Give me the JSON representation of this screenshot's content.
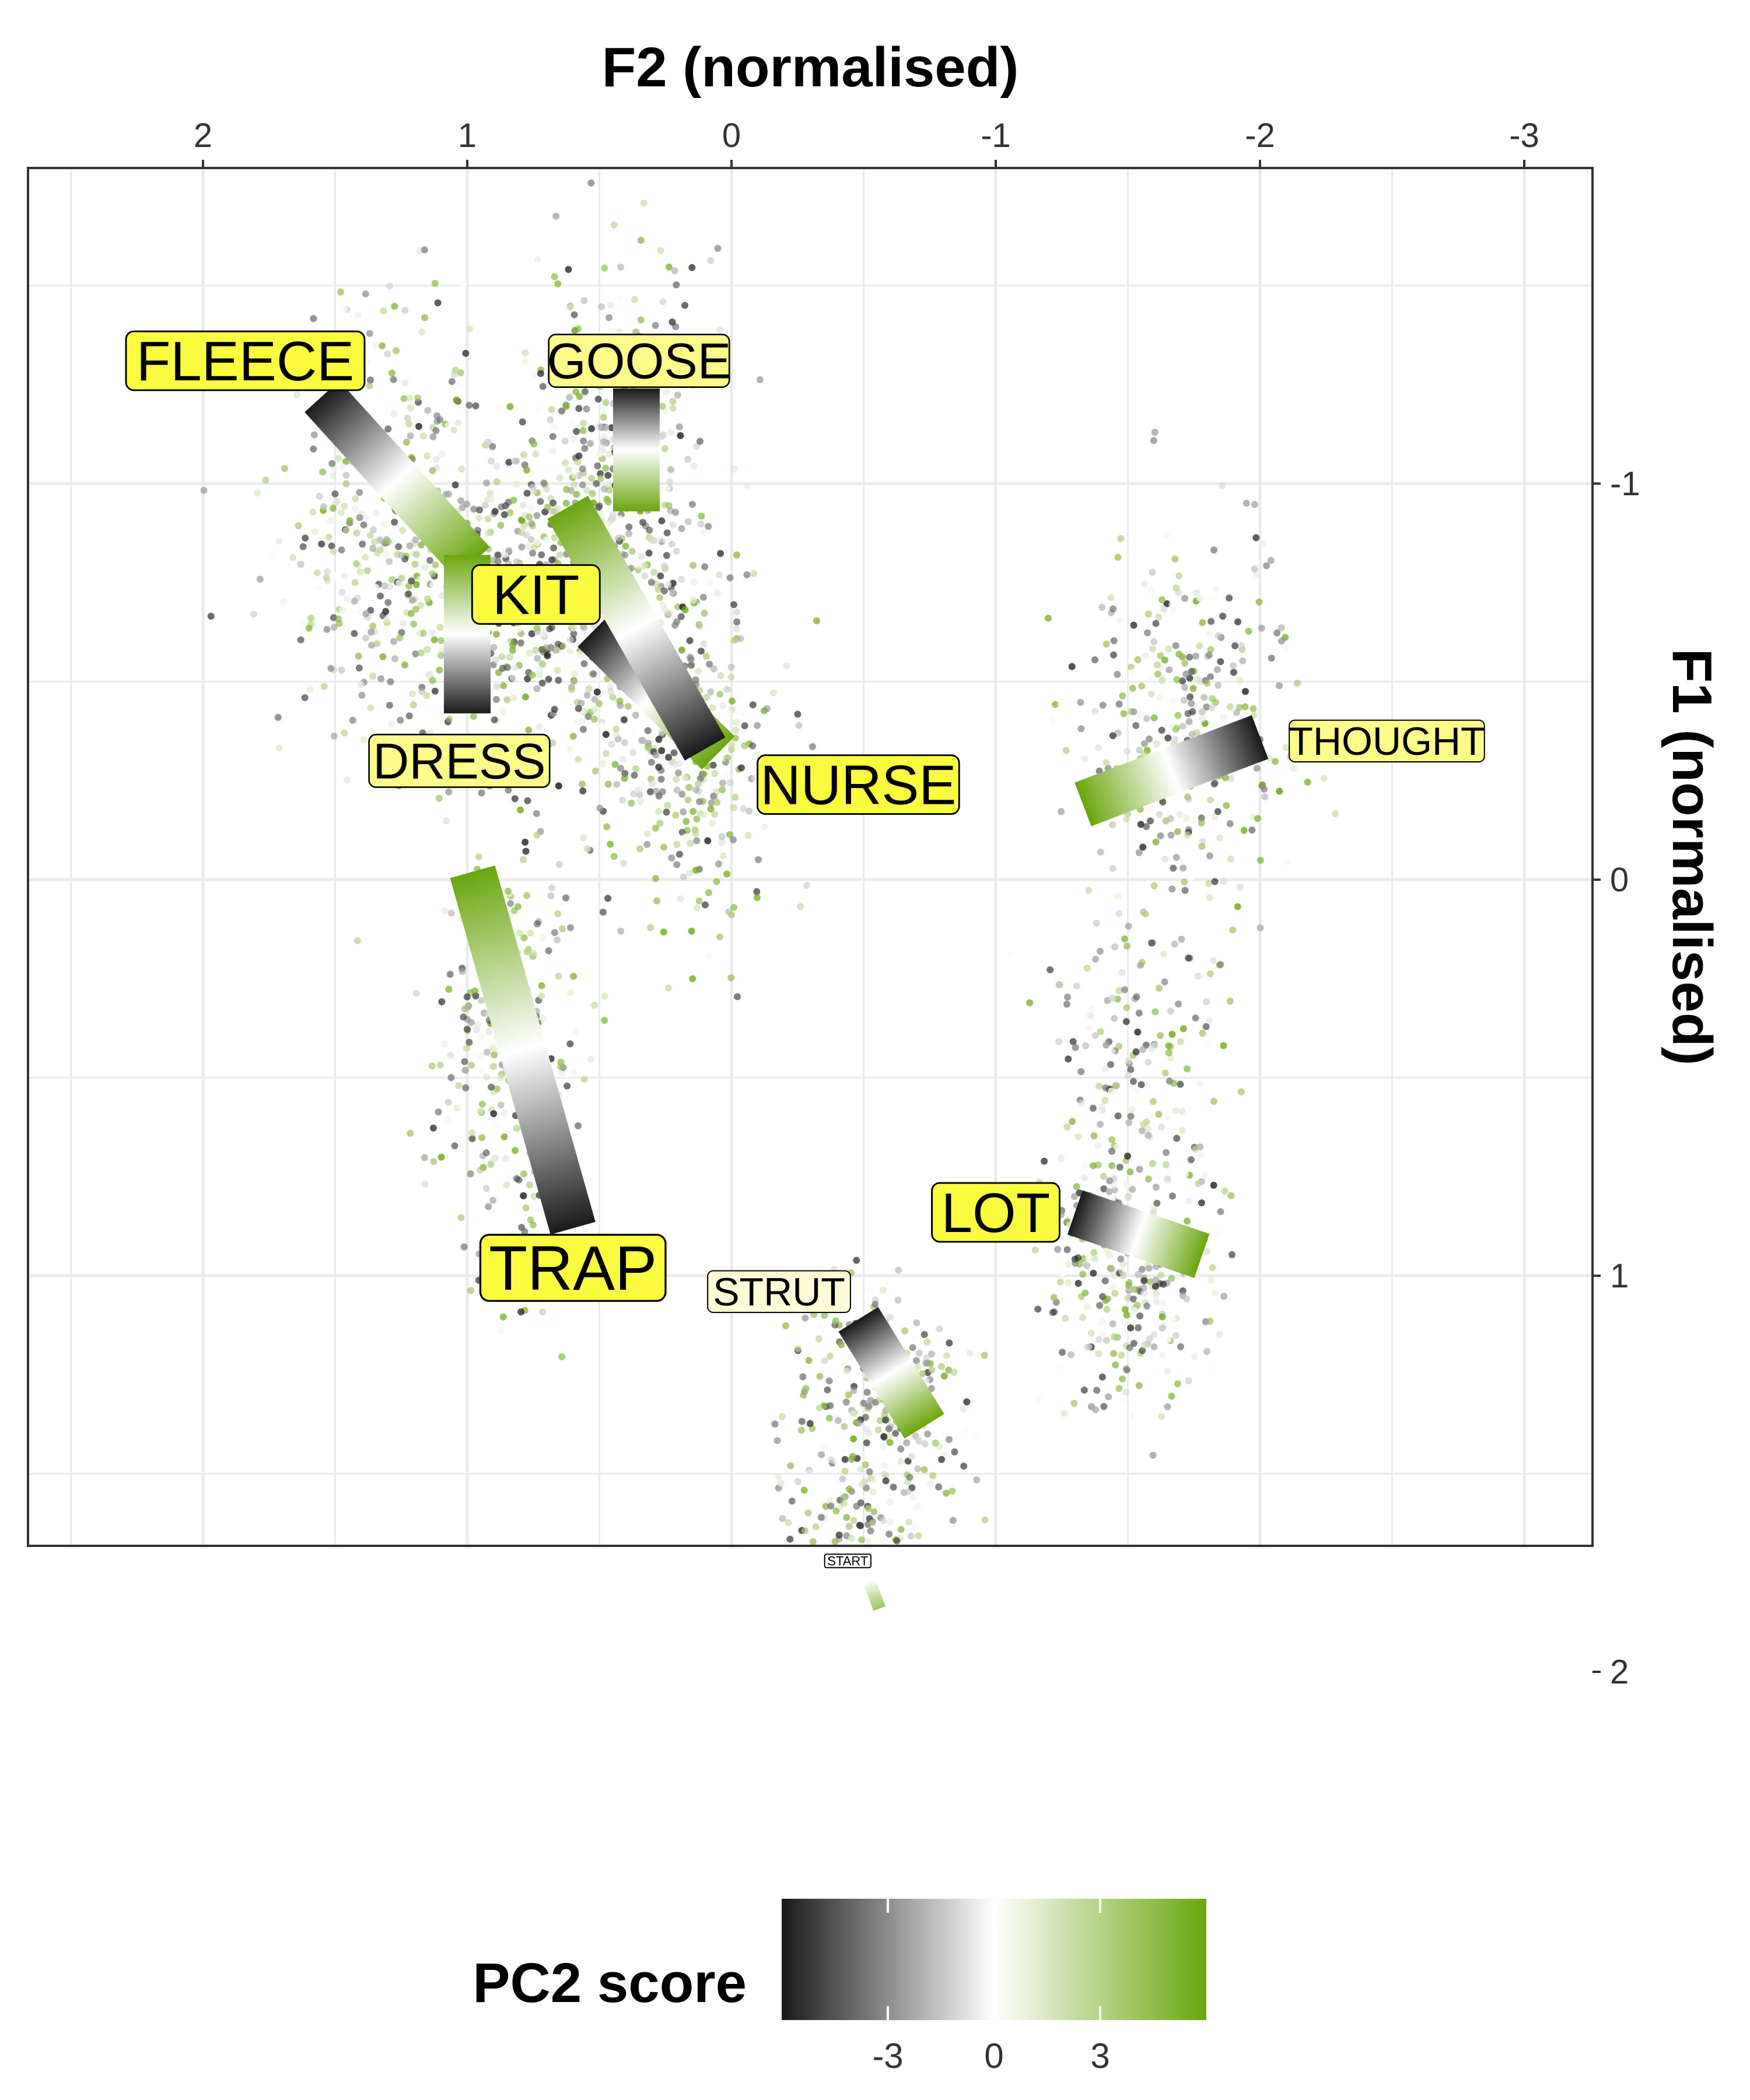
{
  "chart_data": {
    "type": "scatter",
    "xlabel": "F2 (normalised)",
    "ylabel": "F1 (normalised)",
    "x_axis": {
      "position": "top",
      "reversed": true,
      "range": [
        2.66,
        -3.27
      ],
      "ticks": [
        "2",
        "1",
        "0",
        "-1",
        "-2",
        "-3"
      ],
      "tick_values": [
        2,
        1,
        0,
        -1,
        -2,
        -3
      ]
    },
    "y_axis": {
      "position": "right",
      "reversed": true,
      "range": [
        -1.8,
        2.37
      ],
      "ticks": [
        "-1",
        "0",
        "1",
        "2"
      ],
      "tick_values": [
        -1,
        0,
        1,
        2
      ]
    },
    "grid": true,
    "legend": {
      "title": "PC2 score",
      "placement": "bottom",
      "ticks": [
        "-3",
        "0",
        "3"
      ],
      "tick_values": [
        -3,
        0,
        3
      ],
      "range": [
        -6,
        6
      ],
      "colors": {
        "low": "#1a1a1a",
        "mid": "#ffffff",
        "high": "#6aa60f"
      }
    },
    "vowels": [
      {
        "label": "FLEECE",
        "label_size": "large",
        "cx": 1.84,
        "cy": -1.31,
        "start": {
          "x": 1.55,
          "y": -1.22,
          "pc2": -6
        },
        "end": {
          "x": 0.98,
          "y": -0.8,
          "pc2": 6
        },
        "points": {
          "cx": 1.25,
          "cy": -0.88,
          "sx": 0.38,
          "sy": 0.45,
          "n": 420
        }
      },
      {
        "label": "GOOSE",
        "label_size": "medium",
        "cx": 0.35,
        "cy": -1.31,
        "start": {
          "x": 0.36,
          "y": -1.24,
          "pc2": -6
        },
        "end": {
          "x": 0.36,
          "y": -0.93,
          "pc2": 6
        },
        "points": {
          "cx": 0.42,
          "cy": -1.08,
          "sx": 0.28,
          "sy": 0.4,
          "n": 330
        }
      },
      {
        "label": "KIT",
        "label_size": "large",
        "cx": 0.74,
        "cy": -0.72,
        "start": {
          "x": 1.0,
          "y": -0.42,
          "pc2": -6
        },
        "end": {
          "x": 1.0,
          "y": -0.82,
          "pc2": 6
        },
        "points": {
          "cx": 0.85,
          "cy": -0.72,
          "sx": 0.32,
          "sy": 0.32,
          "n": 220
        }
      },
      {
        "label": "NURSE",
        "label_size": "large",
        "cx": -0.48,
        "cy": -0.24,
        "start": {
          "x": 0.52,
          "y": -0.63,
          "pc2": -6
        },
        "end": {
          "x": 0.05,
          "y": -0.32,
          "pc2": 6
        },
        "points": {
          "cx": 0.18,
          "cy": -0.35,
          "sx": 0.3,
          "sy": 0.38,
          "n": 360
        }
      },
      {
        "label": "DRESS",
        "label_size": "medium",
        "cx": 1.03,
        "cy": -0.3,
        "start": {
          "x": 0.62,
          "y": -0.94,
          "pc2": 6
        },
        "end": {
          "x": 0.1,
          "y": -0.33,
          "pc2": -6
        },
        "points": {
          "cx": 0.55,
          "cy": -0.7,
          "sx": 0.3,
          "sy": 0.35,
          "n": 260
        }
      },
      {
        "label": "THOUGHT",
        "label_size": "small",
        "cx": -2.48,
        "cy": -0.35,
        "start": {
          "x": -1.33,
          "y": -0.19,
          "pc2": 6
        },
        "end": {
          "x": -2.0,
          "y": -0.36,
          "pc2": -6
        },
        "points": {
          "cx": -1.72,
          "cy": -0.38,
          "sx": 0.32,
          "sy": 0.4,
          "n": 360
        }
      },
      {
        "label": "TRAP",
        "label_size": "xlarge",
        "cx": 0.6,
        "cy": 0.98,
        "start": {
          "x": 0.98,
          "y": -0.02,
          "pc2": 6
        },
        "end": {
          "x": 0.6,
          "y": 0.88,
          "pc2": -6
        },
        "points": {
          "cx": 0.85,
          "cy": 0.4,
          "sx": 0.22,
          "sy": 0.45,
          "n": 330
        }
      },
      {
        "label": "STRUT",
        "label_size": "small",
        "cx": -0.18,
        "cy": 1.04,
        "start": {
          "x": -0.48,
          "y": 1.11,
          "pc2": -6
        },
        "end": {
          "x": -0.73,
          "y": 1.38,
          "pc2": 6
        },
        "points": {
          "cx": -0.55,
          "cy": 1.3,
          "sx": 0.25,
          "sy": 0.25,
          "n": 260
        }
      },
      {
        "label": "LOT",
        "label_size": "large",
        "cx": -1.0,
        "cy": 0.84,
        "start": {
          "x": -1.3,
          "y": 0.84,
          "pc2": -6
        },
        "end": {
          "x": -1.78,
          "y": 0.95,
          "pc2": 6
        },
        "points": {
          "cx": -1.5,
          "cy": 0.95,
          "sx": 0.28,
          "sy": 0.3,
          "n": 330
        }
      },
      {
        "label": "START",
        "label_size": "tiny",
        "cx": -0.44,
        "cy": 1.72,
        "start": {
          "x": -0.52,
          "y": 1.77,
          "pc2": 0
        },
        "end": {
          "x": -0.56,
          "y": 1.84,
          "pc2": 4
        },
        "points": {
          "cx": -0.5,
          "cy": 1.78,
          "sx": 0.3,
          "sy": 0.25,
          "n": 300
        }
      }
    ],
    "scatter_extra": {
      "cx": -1.55,
      "cy": 0.4,
      "sx": 0.25,
      "sy": 0.35,
      "n": 140
    }
  }
}
